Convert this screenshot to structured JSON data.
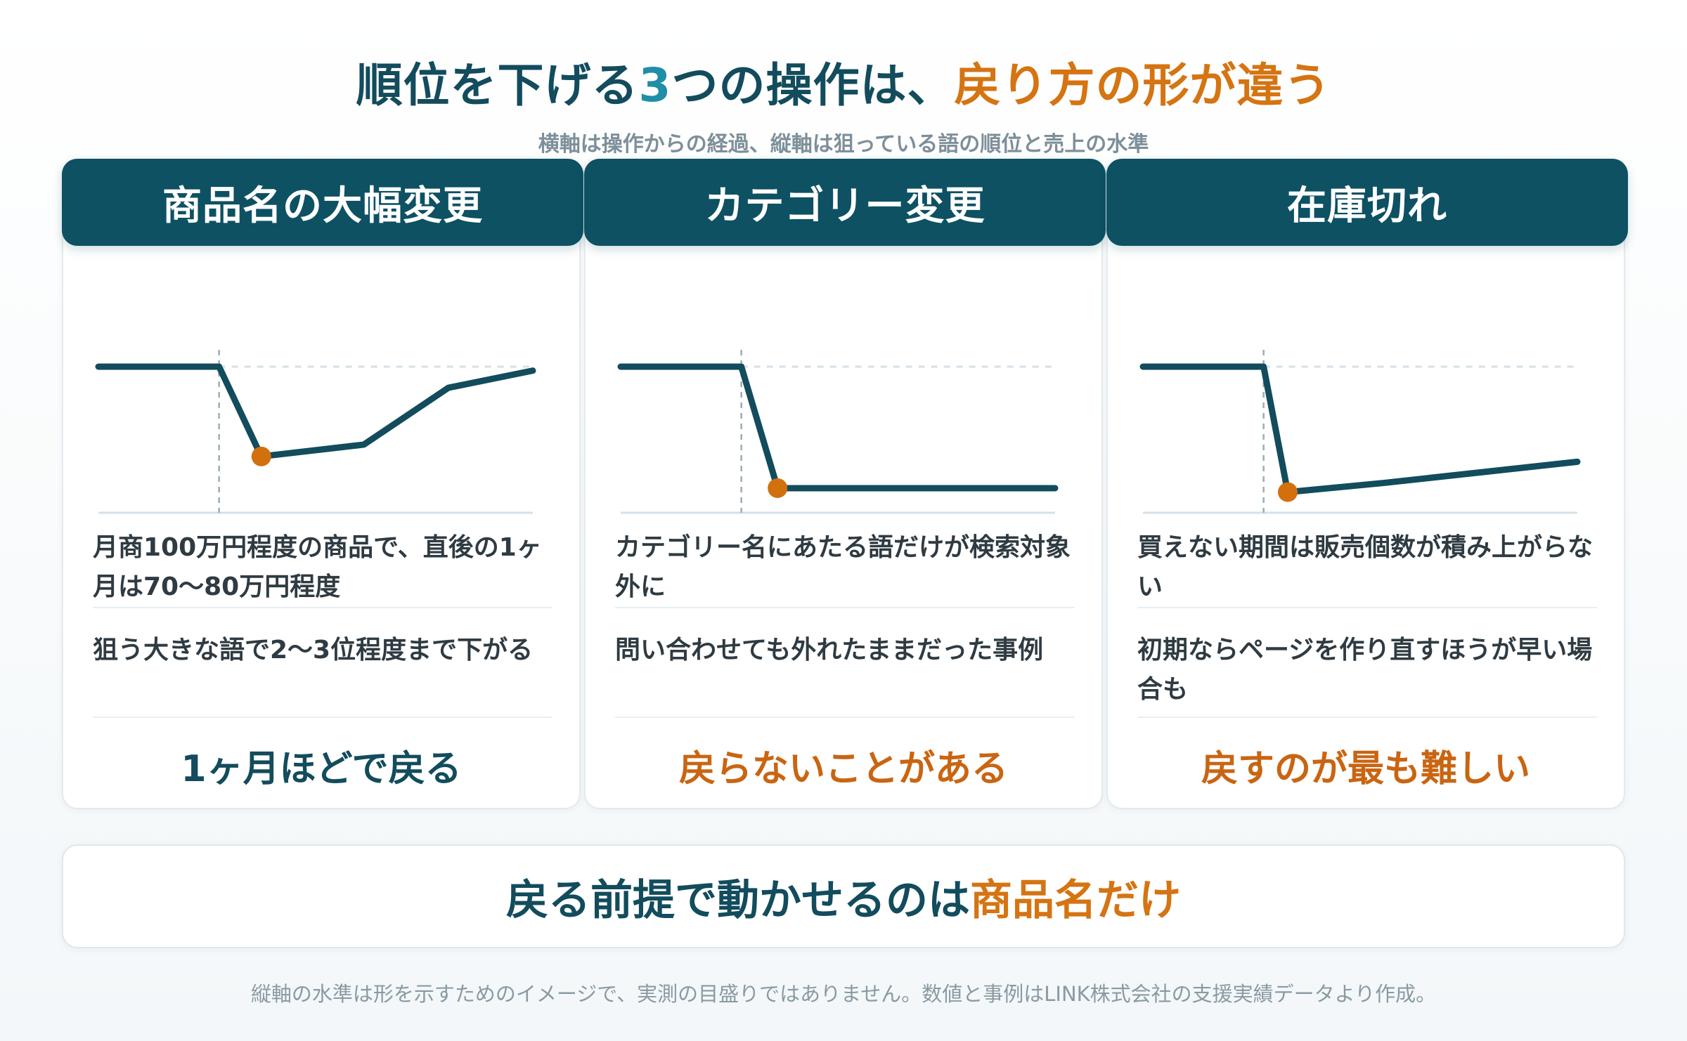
{
  "header": {
    "title_part1": "順位を下げる",
    "title_num": "3",
    "title_part2": "つの操作は、",
    "title_accent": "戻り方の形が違う",
    "subtitle": "横軸は操作からの経過、縦軸は狙っている語の順位と売上の水準"
  },
  "colors": {
    "navy": "#0d5163",
    "teal": "#1f8ea6",
    "orange": "#d57412",
    "line": "#124c5d",
    "marker": "#d2700e"
  },
  "cards": [
    {
      "header": "商品名の大幅変更",
      "note1": "月商100万円程度の商品で、直後の1ヶ月は70〜80万円程度",
      "note2": "狙う大きな語で2〜3位程度まで下がる",
      "result": "1ヶ月ほどで戻る",
      "result_tone": "good"
    },
    {
      "header": "カテゴリー変更",
      "note1": "カテゴリー名にあたる語だけが検索対象外に",
      "note2": "問い合わせても外れたままだった事例",
      "result": "戻らないことがある",
      "result_tone": "bad"
    },
    {
      "header": "在庫切れ",
      "note1": "買えない期間は販売個数が積み上がらない",
      "note2": "初期ならページを作り直すほうが早い場合も",
      "result": "戻すのが最も難しい",
      "result_tone": "bad"
    }
  ],
  "chart_data": [
    {
      "type": "line",
      "x": [
        0,
        1,
        1.35,
        2.2,
        2.9,
        3.6
      ],
      "y": [
        1.0,
        1.0,
        0.32,
        0.41,
        0.84,
        0.97
      ],
      "event_x": 1,
      "lowest_point_index": 2,
      "baseline_dashed": true,
      "xlim": [
        0,
        3.6
      ],
      "ylim": [
        0,
        1.0
      ]
    },
    {
      "type": "line",
      "x": [
        0,
        1,
        1.3,
        3.6
      ],
      "y": [
        1.0,
        1.0,
        0.08,
        0.08
      ],
      "event_x": 1,
      "lowest_point_index": 2,
      "baseline_dashed": true,
      "xlim": [
        0,
        3.6
      ],
      "ylim": [
        0,
        1.0
      ]
    },
    {
      "type": "line",
      "x": [
        0,
        1,
        1.2,
        2.0,
        3.6
      ],
      "y": [
        1.0,
        1.0,
        0.05,
        0.12,
        0.28
      ],
      "event_x": 1,
      "lowest_point_index": 2,
      "baseline_dashed": true,
      "xlim": [
        0,
        3.6
      ],
      "ylim": [
        0,
        1.0
      ]
    }
  ],
  "banner": {
    "text": "戻る前提で動かせるのは",
    "accent": "商品名だけ"
  },
  "footnote": "縦軸の水準は形を示すためのイメージで、実測の目盛りではありません。数値と事例はLINK株式会社の支援実績データより作成。"
}
